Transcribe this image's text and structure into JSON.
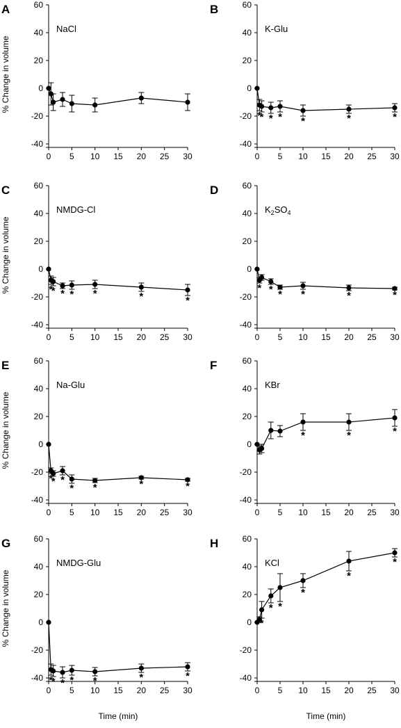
{
  "xlabel": "Time (min)",
  "ylabel": "% Change in volume",
  "chart_data": [
    {
      "type": "line",
      "panel_label": "A",
      "condition": "NaCl",
      "xlim": [
        0,
        30
      ],
      "ylim": [
        -40,
        60
      ],
      "xticks": [
        0,
        5,
        10,
        15,
        20,
        25,
        30
      ],
      "yticks": [
        -40,
        -20,
        0,
        20,
        40,
        60
      ],
      "xlabel": "",
      "ylabel": "% Change in volume",
      "x": [
        0,
        0.5,
        1,
        3,
        5,
        10,
        20,
        30
      ],
      "y": [
        0,
        -4,
        -10,
        -8,
        -11,
        -12,
        -7,
        -10
      ],
      "err": [
        0,
        8,
        6,
        5,
        6,
        5,
        4,
        6
      ],
      "stars": []
    },
    {
      "type": "line",
      "panel_label": "B",
      "condition": "K-Glu",
      "xlim": [
        0,
        30
      ],
      "ylim": [
        -40,
        60
      ],
      "xticks": [
        0,
        5,
        10,
        15,
        20,
        25,
        30
      ],
      "yticks": [
        -40,
        -20,
        0,
        20,
        40,
        60
      ],
      "xlabel": "",
      "ylabel": "",
      "x": [
        0,
        0.5,
        1,
        3,
        5,
        10,
        20,
        30
      ],
      "y": [
        0,
        -12,
        -13,
        -14,
        -13,
        -16,
        -15,
        -14
      ],
      "err": [
        0,
        4,
        4,
        4,
        4,
        4,
        3,
        3
      ],
      "stars": [
        0.5,
        1,
        3,
        5,
        10,
        20,
        30
      ]
    },
    {
      "type": "line",
      "panel_label": "C",
      "condition": "NMDG-Cl",
      "xlim": [
        0,
        30
      ],
      "ylim": [
        -40,
        60
      ],
      "xticks": [
        0,
        5,
        10,
        15,
        20,
        25,
        30
      ],
      "yticks": [
        -40,
        -20,
        0,
        20,
        40,
        60
      ],
      "xlabel": "",
      "ylabel": "% Change in volume",
      "x": [
        0,
        0.5,
        1,
        3,
        5,
        10,
        20,
        30
      ],
      "y": [
        0,
        -8,
        -9,
        -12,
        -11.5,
        -11,
        -13,
        -15
      ],
      "err": [
        0,
        3,
        3,
        2,
        3,
        3,
        3,
        4
      ],
      "stars": [
        0.5,
        1,
        3,
        5,
        10,
        20,
        30
      ]
    },
    {
      "type": "line",
      "panel_label": "D",
      "condition": "K2SO4",
      "condition_main": "K",
      "condition_sub1": "2",
      "condition_mid": "SO",
      "condition_sub2": "4",
      "xlim": [
        0,
        30
      ],
      "ylim": [
        -40,
        60
      ],
      "xticks": [
        0,
        5,
        10,
        15,
        20,
        25,
        30
      ],
      "yticks": [
        -40,
        -20,
        0,
        20,
        40,
        60
      ],
      "xlabel": "",
      "ylabel": "",
      "x": [
        0,
        0.5,
        1,
        3,
        5,
        10,
        20,
        30
      ],
      "y": [
        0,
        -8,
        -6,
        -9,
        -13,
        -12,
        -13.5,
        -14
      ],
      "err": [
        0,
        2,
        2,
        2,
        1.5,
        2.5,
        2,
        1
      ],
      "stars": [
        0.5,
        3,
        5,
        10,
        20,
        30
      ]
    },
    {
      "type": "line",
      "panel_label": "E",
      "condition": "Na-Glu",
      "xlim": [
        0,
        30
      ],
      "ylim": [
        -40,
        60
      ],
      "xticks": [
        0,
        5,
        10,
        15,
        20,
        25,
        30
      ],
      "yticks": [
        -40,
        -20,
        0,
        20,
        40,
        60
      ],
      "xlabel": "",
      "ylabel": "% Change in volume",
      "x": [
        0,
        0.5,
        1,
        3,
        5,
        10,
        20,
        30
      ],
      "y": [
        0,
        -19,
        -21,
        -19,
        -25,
        -26,
        -24,
        -25.5
      ],
      "err": [
        0,
        2,
        2,
        3,
        3,
        1.5,
        1,
        1
      ],
      "stars": [
        0.5,
        1,
        3,
        5,
        10,
        20,
        30
      ]
    },
    {
      "type": "line",
      "panel_label": "F",
      "condition": "KBr",
      "xlim": [
        0,
        30
      ],
      "ylim": [
        -40,
        60
      ],
      "xticks": [
        0,
        5,
        10,
        15,
        20,
        25,
        30
      ],
      "yticks": [
        -40,
        -20,
        0,
        20,
        40,
        60
      ],
      "xlabel": "",
      "ylabel": "",
      "x": [
        0,
        0.5,
        1,
        3,
        5,
        10,
        20,
        30
      ],
      "y": [
        0,
        -4,
        -3,
        10,
        9.5,
        16,
        16,
        19
      ],
      "err": [
        0,
        3,
        3,
        6,
        4,
        6,
        6,
        6
      ],
      "stars": [
        10,
        20,
        30
      ]
    },
    {
      "type": "line",
      "panel_label": "G",
      "condition": "NMDG-Glu",
      "xlim": [
        0,
        30
      ],
      "ylim": [
        -40,
        60
      ],
      "xticks": [
        0,
        5,
        10,
        15,
        20,
        25,
        30
      ],
      "yticks": [
        -40,
        -20,
        0,
        20,
        40,
        60
      ],
      "xlabel": "Time (min)",
      "ylabel": "% Change in volume",
      "x": [
        0,
        0.5,
        1,
        3,
        5,
        10,
        20,
        30
      ],
      "y": [
        0,
        -34,
        -35,
        -36,
        -34.5,
        -35.5,
        -33,
        -32
      ],
      "err": [
        0,
        4,
        4,
        4,
        3.5,
        3,
        3,
        3
      ],
      "stars": [
        0.5,
        1,
        3,
        5,
        10,
        20,
        30
      ]
    },
    {
      "type": "line",
      "panel_label": "H",
      "condition": "KCl",
      "xlim": [
        0,
        30
      ],
      "ylim": [
        -40,
        60
      ],
      "xticks": [
        0,
        5,
        10,
        15,
        20,
        25,
        30
      ],
      "yticks": [
        -40,
        -20,
        0,
        20,
        40,
        60
      ],
      "xlabel": "Time (min)",
      "ylabel": "",
      "x": [
        0,
        0.5,
        1,
        3,
        5,
        10,
        20,
        30
      ],
      "y": [
        0,
        2,
        9,
        19,
        25,
        30,
        44,
        50
      ],
      "err": [
        0,
        2,
        6,
        5,
        10,
        5,
        7,
        3
      ],
      "stars": [
        1,
        3,
        5,
        10,
        20,
        30
      ]
    }
  ]
}
